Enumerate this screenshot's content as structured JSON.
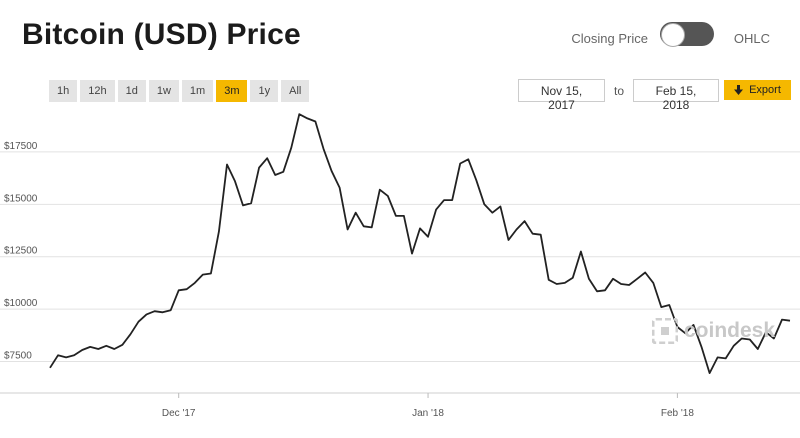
{
  "header": {
    "title": "Bitcoin (USD) Price",
    "toggle_left_label": "Closing Price",
    "toggle_right_label": "OHLC"
  },
  "ranges": [
    {
      "label": "1h",
      "active": false
    },
    {
      "label": "12h",
      "active": false
    },
    {
      "label": "1d",
      "active": false
    },
    {
      "label": "1w",
      "active": false
    },
    {
      "label": "1m",
      "active": false
    },
    {
      "label": "3m",
      "active": true
    },
    {
      "label": "1y",
      "active": false
    },
    {
      "label": "All",
      "active": false
    }
  ],
  "date_range": {
    "from": "Nov 15, 2017",
    "separator": "to",
    "to": "Feb 15, 2018"
  },
  "export": {
    "label": "Export",
    "icon": "download-arrow-icon"
  },
  "watermark": "coindesk",
  "colors": {
    "accent": "#f5b800",
    "line": "#222222",
    "grid": "#e2e2e2"
  },
  "chart_data": {
    "type": "line",
    "title": "Bitcoin (USD) Price",
    "ylim": [
      6000,
      19500
    ],
    "yticks": [
      {
        "value": 7500,
        "label": "$7500"
      },
      {
        "value": 10000,
        "label": "$10000"
      },
      {
        "value": 12500,
        "label": "$12500"
      },
      {
        "value": 15000,
        "label": "$15000"
      },
      {
        "value": 17500,
        "label": "$17500"
      }
    ],
    "xlim": [
      "2017-11-15",
      "2018-02-15"
    ],
    "xticks": [
      {
        "date": "2017-12-01",
        "label": "Dec '17"
      },
      {
        "date": "2018-01-01",
        "label": "Jan '18"
      },
      {
        "date": "2018-02-01",
        "label": "Feb '18"
      }
    ],
    "grid": true,
    "series": [
      {
        "x": [
          "2017-11-15",
          "2017-11-16",
          "2017-11-17",
          "2017-11-18",
          "2017-11-19",
          "2017-11-20",
          "2017-11-21",
          "2017-11-22",
          "2017-11-23",
          "2017-11-24",
          "2017-11-25",
          "2017-11-26",
          "2017-11-27",
          "2017-11-28",
          "2017-11-29",
          "2017-11-30",
          "2017-12-01",
          "2017-12-02",
          "2017-12-03",
          "2017-12-04",
          "2017-12-05",
          "2017-12-06",
          "2017-12-07",
          "2017-12-08",
          "2017-12-09",
          "2017-12-10",
          "2017-12-11",
          "2017-12-12",
          "2017-12-13",
          "2017-12-14",
          "2017-12-15",
          "2017-12-16",
          "2017-12-17",
          "2017-12-18",
          "2017-12-19",
          "2017-12-20",
          "2017-12-21",
          "2017-12-22",
          "2017-12-23",
          "2017-12-24",
          "2017-12-25",
          "2017-12-26",
          "2017-12-27",
          "2017-12-28",
          "2017-12-29",
          "2017-12-30",
          "2017-12-31",
          "2018-01-01",
          "2018-01-02",
          "2018-01-03",
          "2018-01-04",
          "2018-01-05",
          "2018-01-06",
          "2018-01-07",
          "2018-01-08",
          "2018-01-09",
          "2018-01-10",
          "2018-01-11",
          "2018-01-12",
          "2018-01-13",
          "2018-01-14",
          "2018-01-15",
          "2018-01-16",
          "2018-01-17",
          "2018-01-18",
          "2018-01-19",
          "2018-01-20",
          "2018-01-21",
          "2018-01-22",
          "2018-01-23",
          "2018-01-24",
          "2018-01-25",
          "2018-01-26",
          "2018-01-27",
          "2018-01-28",
          "2018-01-29",
          "2018-01-30",
          "2018-01-31",
          "2018-02-01",
          "2018-02-02",
          "2018-02-03",
          "2018-02-04",
          "2018-02-05",
          "2018-02-06",
          "2018-02-07",
          "2018-02-08",
          "2018-02-09",
          "2018-02-10",
          "2018-02-11",
          "2018-02-12",
          "2018-02-13",
          "2018-02-14",
          "2018-02-15"
        ],
        "y": [
          7200,
          7800,
          7700,
          7800,
          8050,
          8200,
          8100,
          8250,
          8100,
          8300,
          8800,
          9400,
          9750,
          9900,
          9850,
          9950,
          10900,
          10950,
          11250,
          11650,
          11700,
          13700,
          16900,
          16100,
          14950,
          15050,
          16750,
          17200,
          16400,
          16550,
          17700,
          19300,
          19100,
          18950,
          17650,
          16600,
          15800,
          13800,
          14600,
          13950,
          13900,
          15700,
          15400,
          14450,
          14450,
          12650,
          13850,
          13450,
          14750,
          15200,
          15200,
          16950,
          17150,
          16150,
          15000,
          14600,
          14900,
          13300,
          13800,
          14200,
          13600,
          13550,
          11400,
          11200,
          11250,
          11500,
          12750,
          11450,
          10850,
          10900,
          11450,
          11200,
          11150,
          11450,
          11750,
          11250,
          10100,
          10200,
          9150,
          8850,
          9250,
          8200,
          6950,
          7700,
          7650,
          8250,
          8600,
          8550,
          8100,
          8900,
          8600,
          9500,
          9450
        ]
      }
    ]
  }
}
